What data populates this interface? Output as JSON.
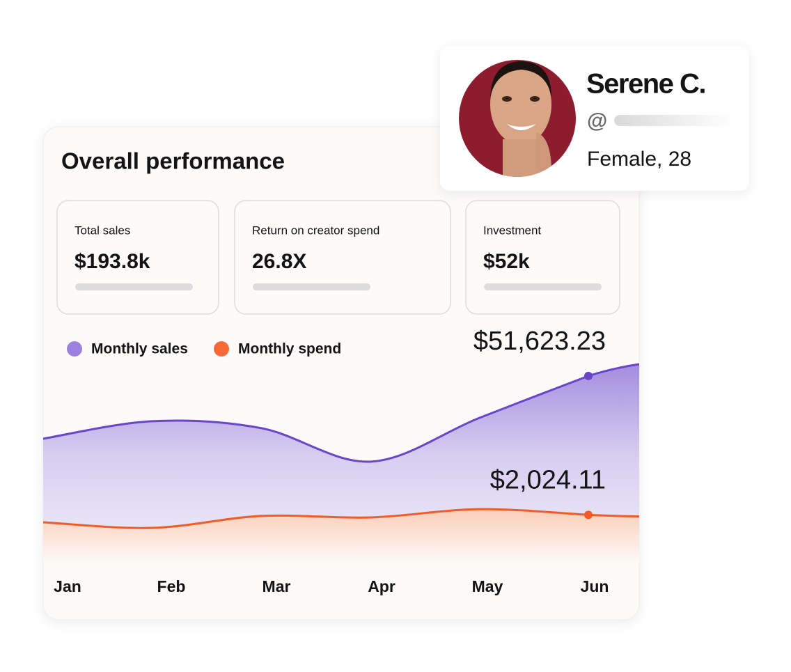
{
  "profile": {
    "name": "Serene C.",
    "handle_prefix": "@",
    "details": "Female, 28"
  },
  "chart_data": {
    "type": "line",
    "title": "Overall performance",
    "stats": [
      {
        "label": "Total sales",
        "value": "$193.8k"
      },
      {
        "label": "Return on creator spend",
        "value": "26.8X"
      },
      {
        "label": "Investment",
        "value": "$52k"
      }
    ],
    "categories": [
      "Jan",
      "Feb",
      "Mar",
      "Apr",
      "May",
      "Jun"
    ],
    "series": [
      {
        "name": "Monthly sales",
        "color": "#6a45c9",
        "values": [
          34400,
          39200,
          37300,
          28100,
          40100,
          51623.23
        ],
        "value_labels": [
          null,
          null,
          null,
          null,
          null,
          "$51,623.23"
        ]
      },
      {
        "name": "Monthly spend",
        "color": "#f25a26",
        "axis": "y2",
        "values": [
          1720,
          1490,
          1980,
          1920,
          2260,
          2024.11
        ],
        "value_labels": [
          null,
          null,
          null,
          null,
          null,
          "$2,024.11"
        ]
      }
    ],
    "ylim": [
      0,
      60000
    ],
    "y2lim": [
      0,
      9000
    ]
  }
}
